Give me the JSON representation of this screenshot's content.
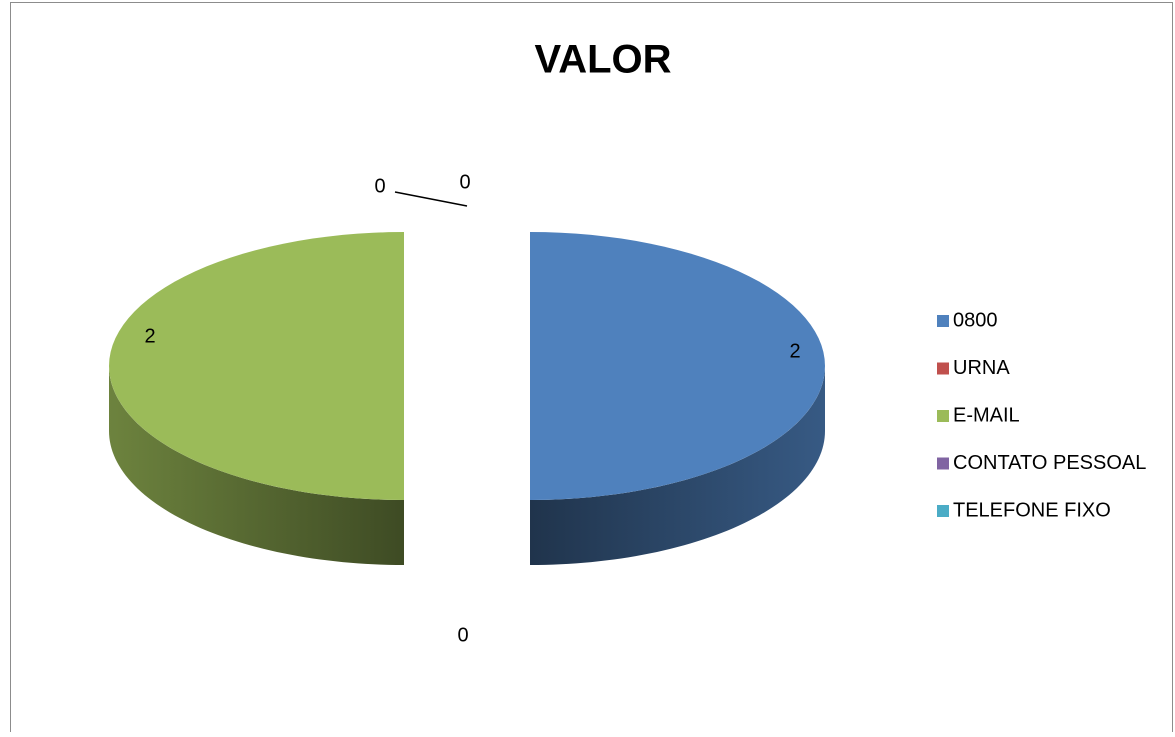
{
  "chart_data": {
    "type": "pie",
    "title": "VALOR",
    "categories": [
      "0800",
      "URNA",
      "E-MAIL",
      "CONTATO PESSOAL",
      "TELEFONE FIXO"
    ],
    "values": [
      2,
      0,
      2,
      0,
      0
    ],
    "colors": [
      "#4f81bd",
      "#c0504d",
      "#9bbb59",
      "#8064a2",
      "#4bacc6"
    ],
    "legend": "right"
  }
}
